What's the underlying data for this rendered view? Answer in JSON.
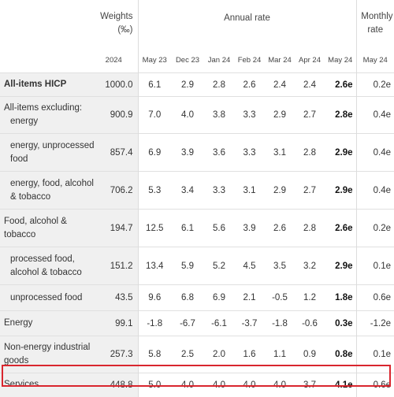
{
  "header": {
    "weights_label": "Weights",
    "weights_unit": "(‰)",
    "annual_label": "Annual rate",
    "monthly_label": "Monthly rate"
  },
  "columns": [
    "2024",
    "May 23",
    "Dec 23",
    "Jan 24",
    "Feb 24",
    "Mar 24",
    "Apr 24",
    "May 24",
    "May 24"
  ],
  "rows": [
    {
      "label": [
        "All-items HICP"
      ],
      "weight": "1000.0",
      "may23": "6.1",
      "dec23": "2.9",
      "jan24": "2.8",
      "feb24": "2.6",
      "mar24": "2.4",
      "apr24": "2.4",
      "may24": "2.6e",
      "monthly": "0.2e"
    },
    {
      "label": [
        "All-items excluding:",
        "energy"
      ],
      "weight": "900.9",
      "may23": "7.0",
      "dec23": "4.0",
      "jan24": "3.8",
      "feb24": "3.3",
      "mar24": "2.9",
      "apr24": "2.7",
      "may24": "2.8e",
      "monthly": "0.4e"
    },
    {
      "label": [
        "energy, unprocessed",
        "food"
      ],
      "weight": "857.4",
      "may23": "6.9",
      "dec23": "3.9",
      "jan24": "3.6",
      "feb24": "3.3",
      "mar24": "3.1",
      "apr24": "2.8",
      "may24": "2.9e",
      "monthly": "0.4e"
    },
    {
      "label": [
        "energy, food, alcohol",
        "& tobacco"
      ],
      "weight": "706.2",
      "may23": "5.3",
      "dec23": "3.4",
      "jan24": "3.3",
      "feb24": "3.1",
      "mar24": "2.9",
      "apr24": "2.7",
      "may24": "2.9e",
      "monthly": "0.4e"
    },
    {
      "label": [
        "Food, alcohol &",
        "tobacco"
      ],
      "weight": "194.7",
      "may23": "12.5",
      "dec23": "6.1",
      "jan24": "5.6",
      "feb24": "3.9",
      "mar24": "2.6",
      "apr24": "2.8",
      "may24": "2.6e",
      "monthly": "0.2e"
    },
    {
      "label": [
        "processed food,",
        "alcohol & tobacco"
      ],
      "weight": "151.2",
      "may23": "13.4",
      "dec23": "5.9",
      "jan24": "5.2",
      "feb24": "4.5",
      "mar24": "3.5",
      "apr24": "3.2",
      "may24": "2.9e",
      "monthly": "0.1e"
    },
    {
      "label": [
        "unprocessed food"
      ],
      "weight": "43.5",
      "may23": "9.6",
      "dec23": "6.8",
      "jan24": "6.9",
      "feb24": "2.1",
      "mar24": "-0.5",
      "apr24": "1.2",
      "may24": "1.8e",
      "monthly": "0.6e"
    },
    {
      "label": [
        "Energy"
      ],
      "weight": "99.1",
      "may23": "-1.8",
      "dec23": "-6.7",
      "jan24": "-6.1",
      "feb24": "-3.7",
      "mar24": "-1.8",
      "apr24": "-0.6",
      "may24": "0.3e",
      "monthly": "-1.2e"
    },
    {
      "label": [
        "Non-energy industrial",
        "goods"
      ],
      "weight": "257.3",
      "may23": "5.8",
      "dec23": "2.5",
      "jan24": "2.0",
      "feb24": "1.6",
      "mar24": "1.1",
      "apr24": "0.9",
      "may24": "0.8e",
      "monthly": "0.1e"
    },
    {
      "label": [
        "Services"
      ],
      "weight": "448.8",
      "may23": "5.0",
      "dec23": "4.0",
      "jan24": "4.0",
      "feb24": "4.0",
      "mar24": "4.0",
      "apr24": "3.7",
      "may24": "4.1e",
      "monthly": "0.6e"
    }
  ],
  "highlight_color": "#d9262e"
}
